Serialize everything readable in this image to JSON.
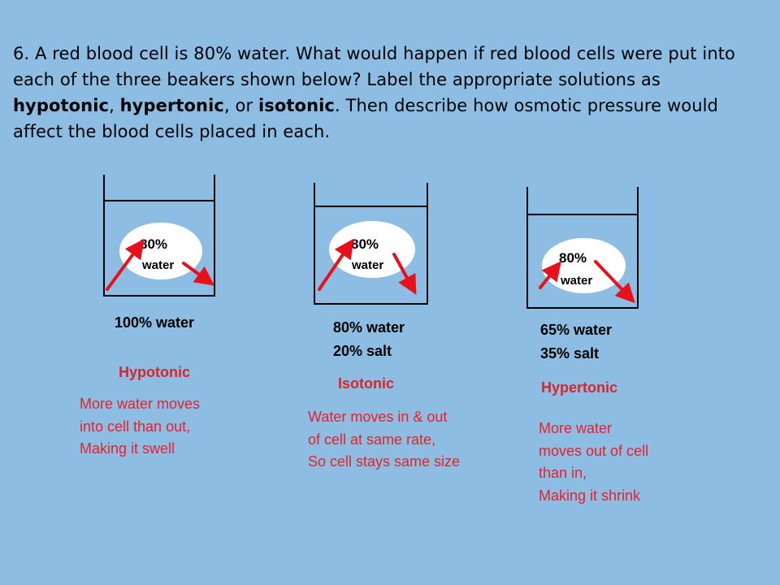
{
  "question": {
    "part1": "6. A red blood cell is 80% water.  What would happen if red blood cells were put into each of the three beakers shown below?   Label the appropriate solutions as ",
    "term1": "hypotonic",
    "sep1": ", ",
    "term2": "hypertonic",
    "sep2": ", or ",
    "term3": "isotonic",
    "part2": ".  Then describe how osmotic pressure would affect the blood cells placed in each."
  },
  "beakers": [
    {
      "cell_percent": "80%",
      "cell_water": "water",
      "solution": "100% water",
      "label": "Hypotonic",
      "description": "More water moves\ninto cell than out,\nMaking it swell"
    },
    {
      "cell_percent": "80%",
      "cell_water": "water",
      "solution": "80% water\n20% salt",
      "label": "Isotonic",
      "description": "Water moves in & out\nof cell at same rate,\nSo cell stays same size"
    },
    {
      "cell_percent": "80%",
      "cell_water": "water",
      "solution": "65% water\n35% salt",
      "label": "Hypertonic",
      "description": "More water\nmoves out of cell\nthan in,\nMaking it shrink"
    }
  ],
  "colors": {
    "background": "#8dbde3",
    "label_red": "#d9262a",
    "arrow_red": "#e8101a"
  }
}
